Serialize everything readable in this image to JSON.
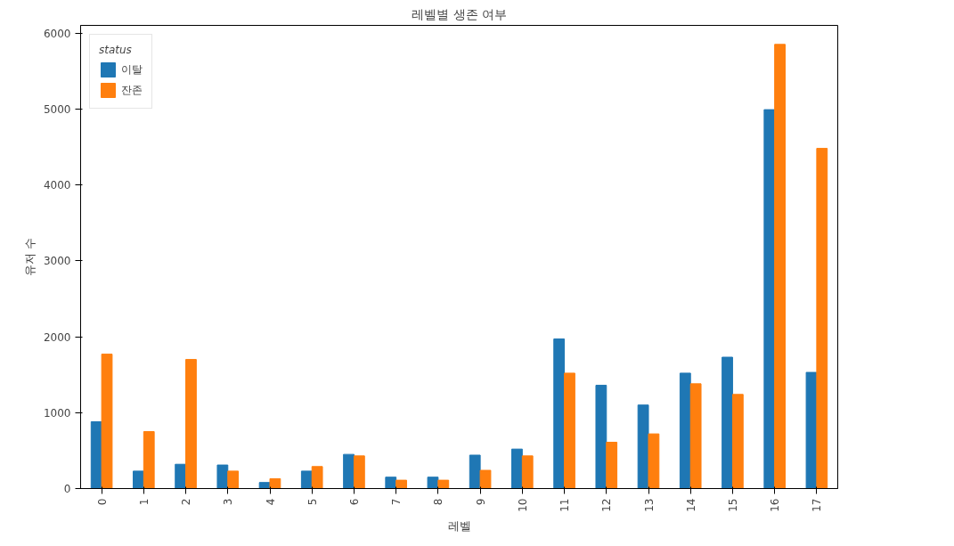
{
  "chart_data": {
    "type": "bar",
    "title": "레벨별 생존 여부",
    "xlabel": "레벨",
    "ylabel": "유저 수",
    "legend_title": "status",
    "legend": "top left",
    "grid": false,
    "categories": [
      "0",
      "1",
      "2",
      "3",
      "4",
      "5",
      "6",
      "7",
      "8",
      "9",
      "10",
      "11",
      "12",
      "13",
      "14",
      "15",
      "16",
      "17"
    ],
    "ylim": [
      0,
      6100
    ],
    "yticks": [
      0,
      1000,
      2000,
      3000,
      4000,
      5000,
      6000
    ],
    "series": [
      {
        "name": "이탈",
        "color": "#1f77b4",
        "values": [
          880,
          230,
          320,
          310,
          80,
          230,
          450,
          150,
          150,
          440,
          520,
          1970,
          1360,
          1100,
          1520,
          1730,
          4990,
          1530
        ]
      },
      {
        "name": "잔존",
        "color": "#ff7f0e",
        "values": [
          1770,
          750,
          1700,
          230,
          130,
          290,
          430,
          110,
          110,
          240,
          430,
          1520,
          610,
          720,
          1380,
          1240,
          5850,
          4480
        ]
      }
    ]
  }
}
